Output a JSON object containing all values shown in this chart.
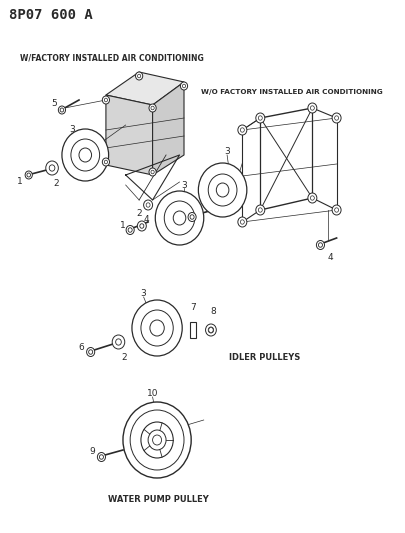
{
  "title": "8P07 600 A",
  "bg_color": "#ffffff",
  "text_color": "#1a1a1a",
  "label_w_ac": "W/FACTORY INSTALLED AIR CONDITIONING",
  "label_wo_ac": "W/O FACTORY INSTALLED AIR CONDITIONING",
  "label_idler": "IDLER PULLEYS",
  "label_water": "WATER PUMP PULLEY",
  "title_fontsize": 10,
  "label_fontsize": 5.5,
  "part_label_fontsize": 6.5,
  "figw": 4.05,
  "figh": 5.33,
  "dpi": 100
}
